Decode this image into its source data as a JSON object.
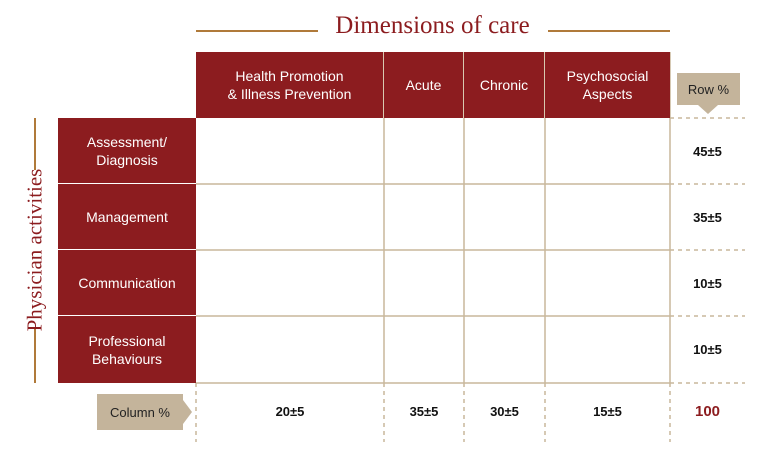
{
  "title": "Dimensions of care",
  "side_label": "Physician activities",
  "columns": [
    "Health Promotion\n& Illness Prevention",
    "Acute",
    "Chronic",
    "Psychosocial\nAspects"
  ],
  "row_percent_header": "Row %",
  "column_percent_header": "Column %",
  "rows": [
    {
      "label": "Assessment/\nDiagnosis",
      "percent": "45±5"
    },
    {
      "label": "Management",
      "percent": "35±5"
    },
    {
      "label": "Communication",
      "percent": "10±5"
    },
    {
      "label": "Professional\nBehaviours",
      "percent": "10±5"
    }
  ],
  "column_percents": [
    "20±5",
    "35±5",
    "30±5",
    "15±5"
  ],
  "total": "100"
}
